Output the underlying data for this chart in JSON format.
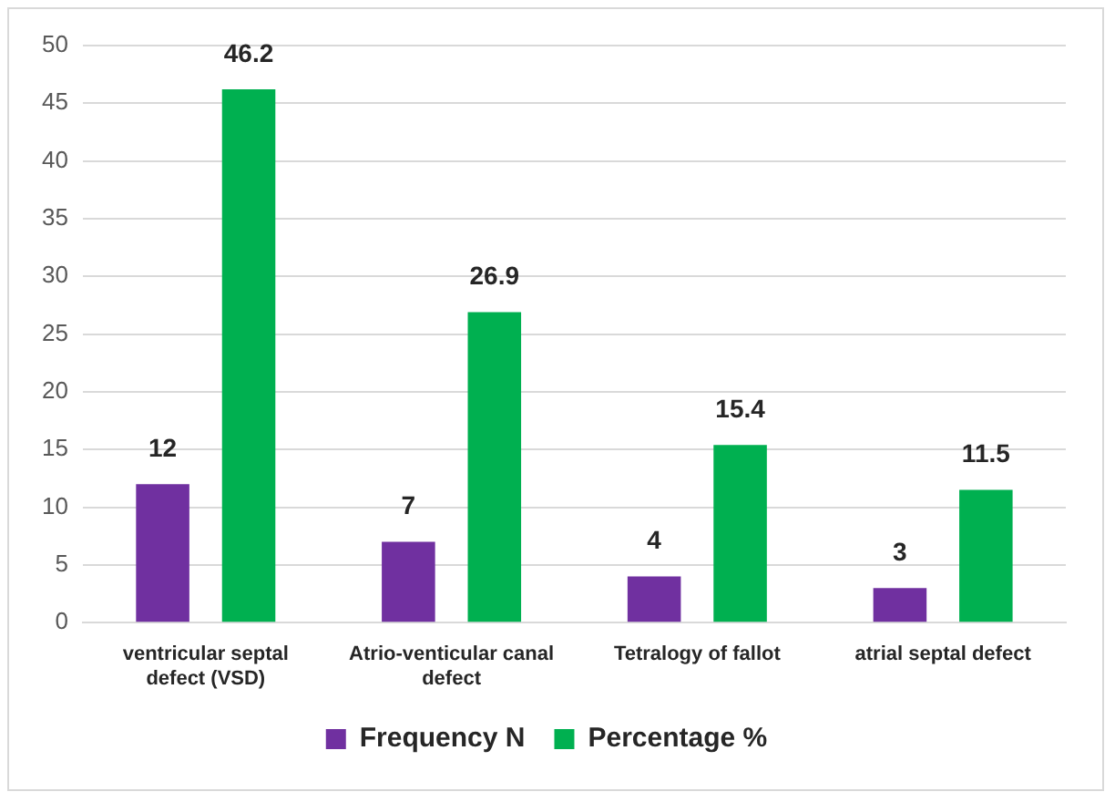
{
  "chart_data": {
    "type": "bar",
    "categories": [
      "ventricular septal defect (VSD)",
      "Atrio-venticular canal defect",
      "Tetralogy of fallot",
      "atrial septal defect"
    ],
    "series": [
      {
        "name": "Frequency N",
        "color": "#7030a0",
        "values": [
          12,
          7,
          4,
          3
        ]
      },
      {
        "name": "Percentage %",
        "color": "#00b050",
        "values": [
          46.2,
          26.9,
          15.4,
          11.5
        ]
      }
    ],
    "ylim": [
      0,
      50
    ],
    "yticks": [
      0,
      5,
      10,
      15,
      20,
      25,
      30,
      35,
      40,
      45,
      50
    ],
    "grid": "y",
    "legend": "bottom",
    "data_labels": true
  }
}
